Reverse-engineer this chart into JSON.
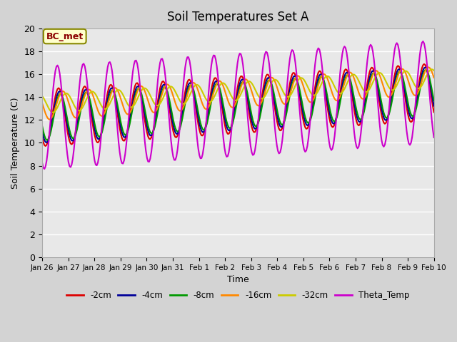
{
  "title": "Soil Temperatures Set A",
  "xlabel": "Time",
  "ylabel": "Soil Temperature (C)",
  "ylim": [
    0,
    20
  ],
  "yticks": [
    0,
    2,
    4,
    6,
    8,
    10,
    12,
    14,
    16,
    18,
    20
  ],
  "background_color": "#d3d3d3",
  "plot_bg_color": "#e8e8e8",
  "series_colors": {
    "-2cm": "#dd0000",
    "-4cm": "#000099",
    "-8cm": "#009900",
    "-16cm": "#ff8800",
    "-32cm": "#cccc00",
    "Theta_Temp": "#cc00cc"
  },
  "xtick_labels": [
    "Jan 26",
    "Jan 27",
    "Jan 28",
    "Jan 29",
    "Jan 30",
    "Jan 31",
    "Feb 1",
    "Feb 2",
    "Feb 3",
    "Feb 4",
    "Feb 5",
    "Feb 6",
    "Feb 7",
    "Feb 8",
    "Feb 9",
    "Feb 10"
  ],
  "num_days": 15,
  "points_per_day": 24
}
